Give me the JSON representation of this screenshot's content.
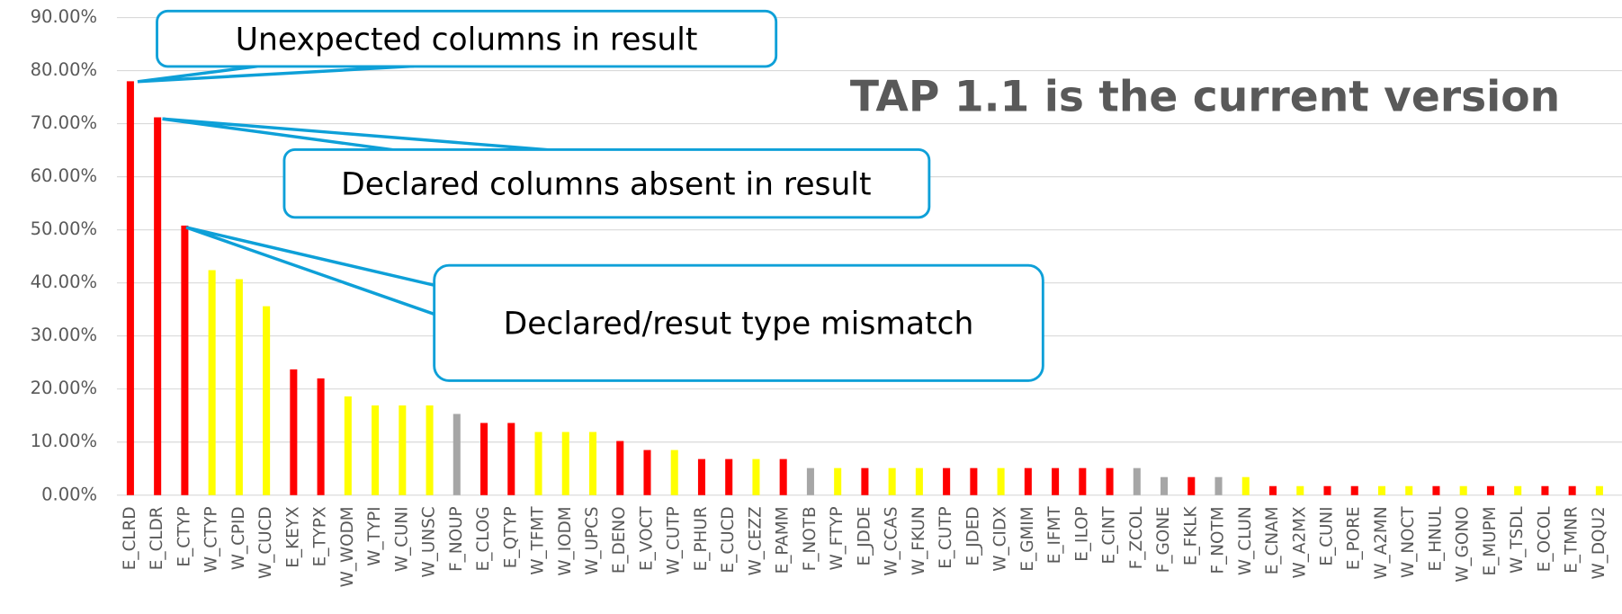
{
  "chart_data": {
    "type": "bar",
    "title": "TAP 1.1 is the current version",
    "annotations": [
      "Unexpected columns in result",
      "Declared columns absent in result",
      "Declared/resut type mismatch"
    ],
    "categories": [
      "E_CLRD",
      "E_CLDR",
      "E_CTYP",
      "W_CTYP",
      "W_CPID",
      "W_CUCD",
      "E_KEYX",
      "E_TYPX",
      "W_WODM",
      "W_TYPI",
      "W_CUNI",
      "W_UNSC",
      "F_NOUP",
      "E_CLOG",
      "E_QTYP",
      "W_TFMT",
      "W_IODM",
      "W_UPCS",
      "E_DENO",
      "E_VOCT",
      "W_CUTP",
      "E_PHUR",
      "E_CUCD",
      "W_CEZZ",
      "E_PAMM",
      "F_NOTB",
      "W_FTYP",
      "E_JDDE",
      "W_CCAS",
      "W_FKUN",
      "E_CUTP",
      "E_JDED",
      "W_CIDX",
      "E_GMIM",
      "E_IFMT",
      "E_ILOP",
      "E_CINT",
      "F_ZCOL",
      "F_GONE",
      "E_FKLK",
      "F_NOTM",
      "W_CLUN",
      "E_CNAM",
      "W_A2MX",
      "E_CUNI",
      "E_PORE",
      "W_A2MN",
      "W_NOCT",
      "E_HNUL",
      "W_GONO",
      "E_MUPM",
      "W_TSDL",
      "E_OCOL",
      "E_TMNR",
      "W_DQU2"
    ],
    "values": [
      78.0,
      71.2,
      50.8,
      42.4,
      40.7,
      35.6,
      23.7,
      22.0,
      18.6,
      16.9,
      16.9,
      16.9,
      15.3,
      13.6,
      13.6,
      11.9,
      11.9,
      11.9,
      10.2,
      8.5,
      8.5,
      6.8,
      6.8,
      6.8,
      6.8,
      5.1,
      5.1,
      5.1,
      5.1,
      5.1,
      5.1,
      5.1,
      5.1,
      5.1,
      5.1,
      5.1,
      5.1,
      5.1,
      3.4,
      3.4,
      3.4,
      3.4,
      1.7,
      1.7,
      1.7,
      1.7,
      1.7,
      1.7,
      1.7,
      1.7,
      1.7,
      1.7,
      1.7,
      1.7,
      1.7
    ],
    "colors": [
      "#ff0000",
      "#ff0000",
      "#ff0000",
      "#ffff00",
      "#ffff00",
      "#ffff00",
      "#ff0000",
      "#ff0000",
      "#ffff00",
      "#ffff00",
      "#ffff00",
      "#ffff00",
      "#a6a6a6",
      "#ff0000",
      "#ff0000",
      "#ffff00",
      "#ffff00",
      "#ffff00",
      "#ff0000",
      "#ff0000",
      "#ffff00",
      "#ff0000",
      "#ff0000",
      "#ffff00",
      "#ff0000",
      "#a6a6a6",
      "#ffff00",
      "#ff0000",
      "#ffff00",
      "#ffff00",
      "#ff0000",
      "#ff0000",
      "#ffff00",
      "#ff0000",
      "#ff0000",
      "#ff0000",
      "#ff0000",
      "#a6a6a6",
      "#a6a6a6",
      "#ff0000",
      "#a6a6a6",
      "#ffff00",
      "#ff0000",
      "#ffff00",
      "#ff0000",
      "#ff0000",
      "#ffff00",
      "#ffff00",
      "#ff0000",
      "#ffff00",
      "#ff0000",
      "#ffff00",
      "#ff0000",
      "#ff0000",
      "#ffff00"
    ],
    "ylim": [
      0,
      90
    ],
    "yticks": [
      {
        "value": 0,
        "label": "0.00%"
      },
      {
        "value": 10,
        "label": "10.00%"
      },
      {
        "value": 20,
        "label": "20.00%"
      },
      {
        "value": 30,
        "label": "30.00%"
      },
      {
        "value": 40,
        "label": "40.00%"
      },
      {
        "value": 50,
        "label": "50.00%"
      },
      {
        "value": 60,
        "label": "60.00%"
      },
      {
        "value": 70,
        "label": "70.00%"
      },
      {
        "value": 80,
        "label": "80.00%"
      },
      {
        "value": 90,
        "label": "90.00%"
      }
    ],
    "grid": true
  }
}
